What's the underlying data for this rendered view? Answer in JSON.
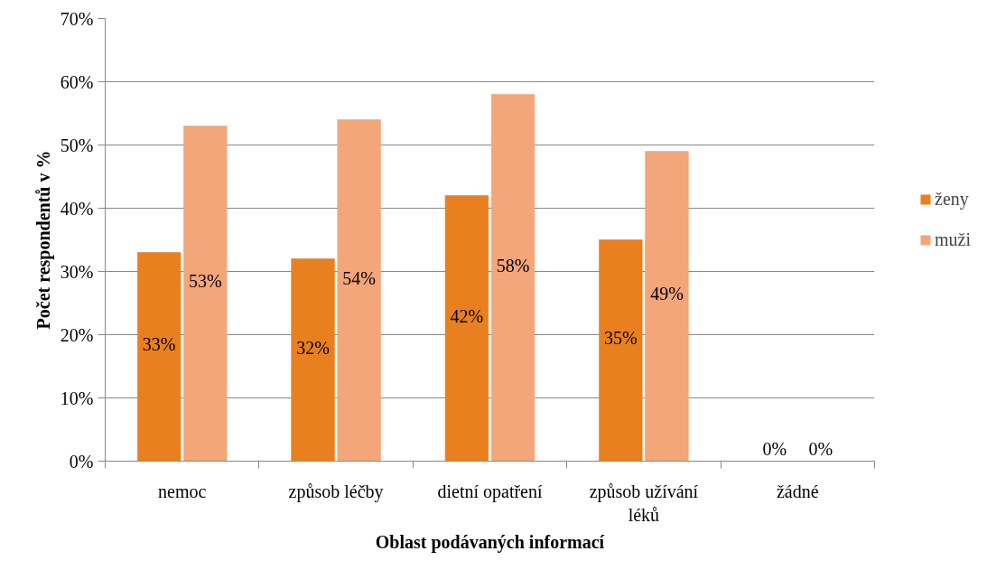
{
  "chart_data": {
    "type": "bar",
    "xlabel": "Oblast podávaných informací",
    "ylabel": "Počet respondentů v %",
    "categories": [
      "nemoc",
      "způsob léčby",
      "dietní opatření",
      "způsob užívání léků",
      "žádné"
    ],
    "series": [
      {
        "name": "ženy",
        "color": "#e9801f",
        "values": [
          33,
          32,
          42,
          35,
          0
        ],
        "value_labels": [
          "33%",
          "32%",
          "42%",
          "35%",
          "0%"
        ]
      },
      {
        "name": "muži",
        "color": "#f2a67a",
        "values": [
          53,
          54,
          58,
          49,
          0
        ],
        "value_labels": [
          "53%",
          "54%",
          "58%",
          "49%",
          "0%"
        ]
      }
    ],
    "ylim": [
      0,
      70
    ],
    "yticks": [
      {
        "value": 0,
        "label": "0%"
      },
      {
        "value": 10,
        "label": "10%"
      },
      {
        "value": 20,
        "label": "20%"
      },
      {
        "value": 30,
        "label": "30%"
      },
      {
        "value": 40,
        "label": "40%"
      },
      {
        "value": 50,
        "label": "50%"
      },
      {
        "value": 60,
        "label": "60%"
      },
      {
        "value": 70,
        "label": "70%"
      }
    ],
    "grid": "y",
    "legend": "right"
  }
}
